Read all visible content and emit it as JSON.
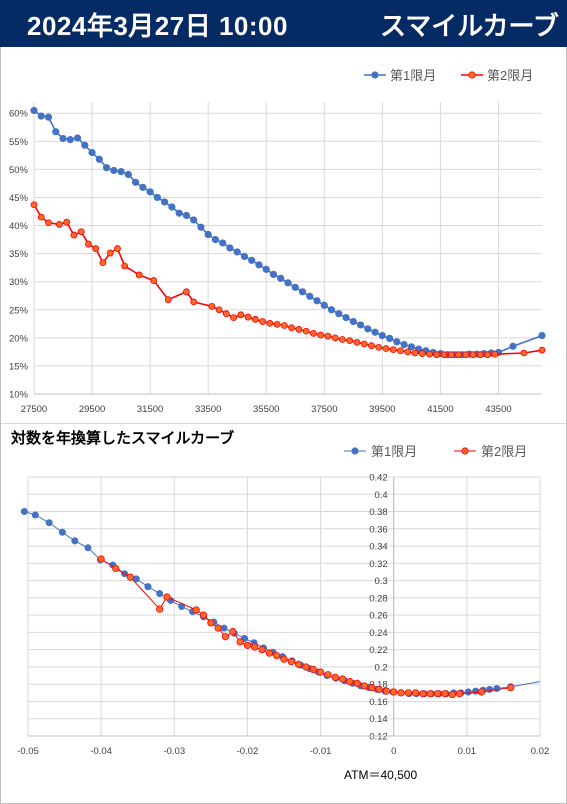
{
  "header": {
    "datetime": "2024年3月27日 10:00",
    "title": "スマイルカーブ"
  },
  "colors": {
    "series1": "#4472c4",
    "series2": "#ff0000",
    "marker2_fill": "#ff6a2a",
    "header_bg": "#062a63"
  },
  "chart_data": [
    {
      "type": "line",
      "title": "",
      "xlabel": "",
      "ylabel": "",
      "xlim": [
        27500,
        45000
      ],
      "ylim": [
        0.1,
        0.62
      ],
      "xticks": [
        "27500",
        "29500",
        "31500",
        "33500",
        "35500",
        "37500",
        "39500",
        "41500",
        "43500"
      ],
      "yticks": [
        "10%",
        "15%",
        "20%",
        "25%",
        "30%",
        "35%",
        "40%",
        "45%",
        "50%",
        "55%",
        "60%"
      ],
      "legend_position": "top-right",
      "grid": true,
      "series": [
        {
          "name": "第1限月",
          "x": [
            27500,
            27750,
            28000,
            28250,
            28500,
            28750,
            29000,
            29250,
            29500,
            29750,
            30000,
            30250,
            30500,
            30750,
            31000,
            31250,
            31500,
            31750,
            32000,
            32250,
            32500,
            32750,
            33000,
            33250,
            33500,
            33750,
            34000,
            34250,
            34500,
            34750,
            35000,
            35250,
            35500,
            35750,
            36000,
            36250,
            36500,
            36750,
            37000,
            37250,
            37500,
            37750,
            38000,
            38250,
            38500,
            38750,
            39000,
            39250,
            39500,
            39750,
            40000,
            40250,
            40500,
            40750,
            41000,
            41250,
            41500,
            41750,
            42000,
            42250,
            42500,
            42750,
            43000,
            43250,
            43500,
            44000,
            45000
          ],
          "y": [
            0.605,
            0.595,
            0.593,
            0.567,
            0.555,
            0.553,
            0.556,
            0.543,
            0.53,
            0.518,
            0.503,
            0.498,
            0.496,
            0.491,
            0.477,
            0.468,
            0.46,
            0.45,
            0.442,
            0.433,
            0.422,
            0.418,
            0.41,
            0.397,
            0.384,
            0.375,
            0.369,
            0.36,
            0.353,
            0.345,
            0.338,
            0.33,
            0.322,
            0.313,
            0.306,
            0.298,
            0.29,
            0.282,
            0.274,
            0.266,
            0.258,
            0.25,
            0.243,
            0.236,
            0.229,
            0.223,
            0.216,
            0.21,
            0.204,
            0.199,
            0.193,
            0.188,
            0.184,
            0.18,
            0.177,
            0.174,
            0.172,
            0.17,
            0.17,
            0.17,
            0.171,
            0.171,
            0.172,
            0.173,
            0.174,
            0.185,
            0.204
          ]
        },
        {
          "name": "第2限月",
          "x": [
            27500,
            27750,
            28000,
            28375,
            28625,
            28875,
            29125,
            29375,
            29625,
            29875,
            30125,
            30375,
            30625,
            31125,
            31625,
            32125,
            32750,
            33000,
            33625,
            33875,
            34125,
            34375,
            34625,
            34875,
            35125,
            35375,
            35625,
            35875,
            36125,
            36375,
            36625,
            36875,
            37125,
            37375,
            37625,
            37875,
            38125,
            38375,
            38625,
            38875,
            39125,
            39375,
            39625,
            39875,
            40125,
            40375,
            40625,
            40875,
            41125,
            41375,
            41625,
            41875,
            42125,
            42375,
            42625,
            42875,
            43125,
            43375,
            44375,
            45000
          ],
          "y": [
            0.437,
            0.415,
            0.405,
            0.402,
            0.406,
            0.383,
            0.389,
            0.367,
            0.359,
            0.334,
            0.351,
            0.359,
            0.328,
            0.312,
            0.302,
            0.268,
            0.282,
            0.264,
            0.256,
            0.25,
            0.243,
            0.236,
            0.241,
            0.237,
            0.233,
            0.229,
            0.226,
            0.224,
            0.222,
            0.218,
            0.215,
            0.212,
            0.208,
            0.205,
            0.203,
            0.2,
            0.197,
            0.195,
            0.192,
            0.189,
            0.186,
            0.183,
            0.181,
            0.179,
            0.177,
            0.175,
            0.173,
            0.172,
            0.171,
            0.17,
            0.17,
            0.17,
            0.17,
            0.17,
            0.17,
            0.17,
            0.17,
            0.171,
            0.173,
            0.178
          ]
        }
      ]
    },
    {
      "type": "line",
      "title": "対数を年換算したスマイルカーブ",
      "xlabel": "",
      "ylabel": "",
      "xlim": [
        -0.05,
        0.02
      ],
      "ylim": [
        0.12,
        0.42
      ],
      "xticks": [
        "-0.05",
        "-0.04",
        "-0.03",
        "-0.02",
        "-0.01",
        "0",
        "0.01",
        "0.02"
      ],
      "yticks": [
        "0.12",
        "0.14",
        "0.16",
        "0.18",
        "0.2",
        "0.22",
        "0.24",
        "0.26",
        "0.28",
        "0.3",
        "0.32",
        "0.34",
        "0.36",
        "0.38",
        "0.4",
        "0.42"
      ],
      "legend_position": "top-right",
      "grid": true,
      "annotation": "ATM＝40,500",
      "series": [
        {
          "name": "第1限月",
          "x": [
            -0.0505,
            -0.049,
            -0.0471,
            -0.0453,
            -0.0436,
            -0.0418,
            -0.0401,
            -0.0384,
            -0.0368,
            -0.0352,
            -0.0336,
            -0.032,
            -0.0305,
            -0.029,
            -0.0275,
            -0.026,
            -0.0246,
            -0.0232,
            -0.0218,
            -0.0204,
            -0.0191,
            -0.0178,
            -0.0165,
            -0.0152,
            -0.0139,
            -0.0127,
            -0.0115,
            -0.0103,
            -0.0091,
            -0.0079,
            -0.0067,
            -0.0056,
            -0.0045,
            -0.0034,
            -0.0023,
            -0.0012,
            -0.0001,
            0.001,
            0.0021,
            0.0031,
            0.0042,
            0.0052,
            0.0062,
            0.0072,
            0.0082,
            0.0092,
            0.0102,
            0.0112,
            0.0122,
            0.0131,
            0.0141,
            0.016,
            0.02
          ],
          "y": [
            0.38,
            0.376,
            0.367,
            0.356,
            0.346,
            0.338,
            0.324,
            0.318,
            0.308,
            0.302,
            0.293,
            0.285,
            0.277,
            0.27,
            0.264,
            0.258,
            0.252,
            0.245,
            0.239,
            0.233,
            0.228,
            0.222,
            0.217,
            0.212,
            0.207,
            0.202,
            0.198,
            0.194,
            0.19,
            0.187,
            0.184,
            0.181,
            0.178,
            0.176,
            0.174,
            0.172,
            0.171,
            0.17,
            0.169,
            0.169,
            0.169,
            0.169,
            0.169,
            0.169,
            0.17,
            0.17,
            0.171,
            0.172,
            0.173,
            0.174,
            0.175,
            0.177,
            0.183
          ]
        },
        {
          "name": "第2限月",
          "x": [
            -0.04,
            -0.038,
            -0.036,
            -0.032,
            -0.031,
            -0.027,
            -0.026,
            -0.025,
            -0.024,
            -0.023,
            -0.022,
            -0.021,
            -0.02,
            -0.019,
            -0.018,
            -0.017,
            -0.016,
            -0.015,
            -0.014,
            -0.013,
            -0.012,
            -0.011,
            -0.01,
            -0.009,
            -0.008,
            -0.007,
            -0.006,
            -0.005,
            -0.004,
            -0.003,
            -0.002,
            -0.001,
            0.0,
            0.001,
            0.002,
            0.003,
            0.004,
            0.005,
            0.006,
            0.007,
            0.008,
            0.009,
            0.012,
            0.016
          ],
          "y": [
            0.325,
            0.314,
            0.304,
            0.267,
            0.281,
            0.266,
            0.26,
            0.251,
            0.245,
            0.235,
            0.241,
            0.229,
            0.225,
            0.223,
            0.22,
            0.216,
            0.213,
            0.209,
            0.206,
            0.203,
            0.2,
            0.197,
            0.194,
            0.191,
            0.188,
            0.186,
            0.183,
            0.181,
            0.178,
            0.176,
            0.174,
            0.172,
            0.171,
            0.17,
            0.17,
            0.17,
            0.169,
            0.169,
            0.169,
            0.169,
            0.168,
            0.169,
            0.171,
            0.176
          ]
        }
      ]
    }
  ]
}
